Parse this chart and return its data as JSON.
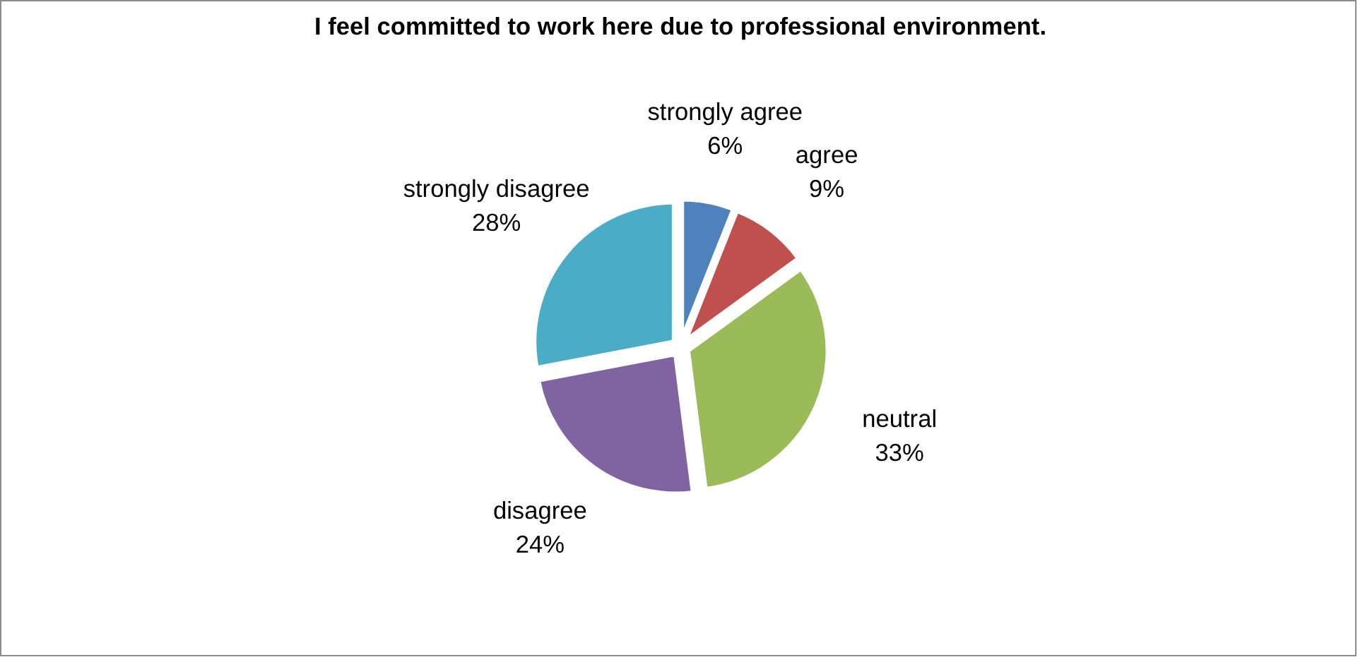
{
  "chart_data": {
    "type": "pie",
    "title": "I feel committed to work here due to professional environment.",
    "categories": [
      "strongly agree",
      "agree",
      "neutral",
      "disagree",
      "strongly disagree"
    ],
    "values": [
      6,
      9,
      33,
      24,
      28
    ],
    "value_labels": [
      "6%",
      "9%",
      "33%",
      "24%",
      "28%"
    ],
    "colors": [
      "#4f81bd",
      "#c0504d",
      "#9bbb59",
      "#8064a2",
      "#4bacc6"
    ],
    "legend": false
  }
}
